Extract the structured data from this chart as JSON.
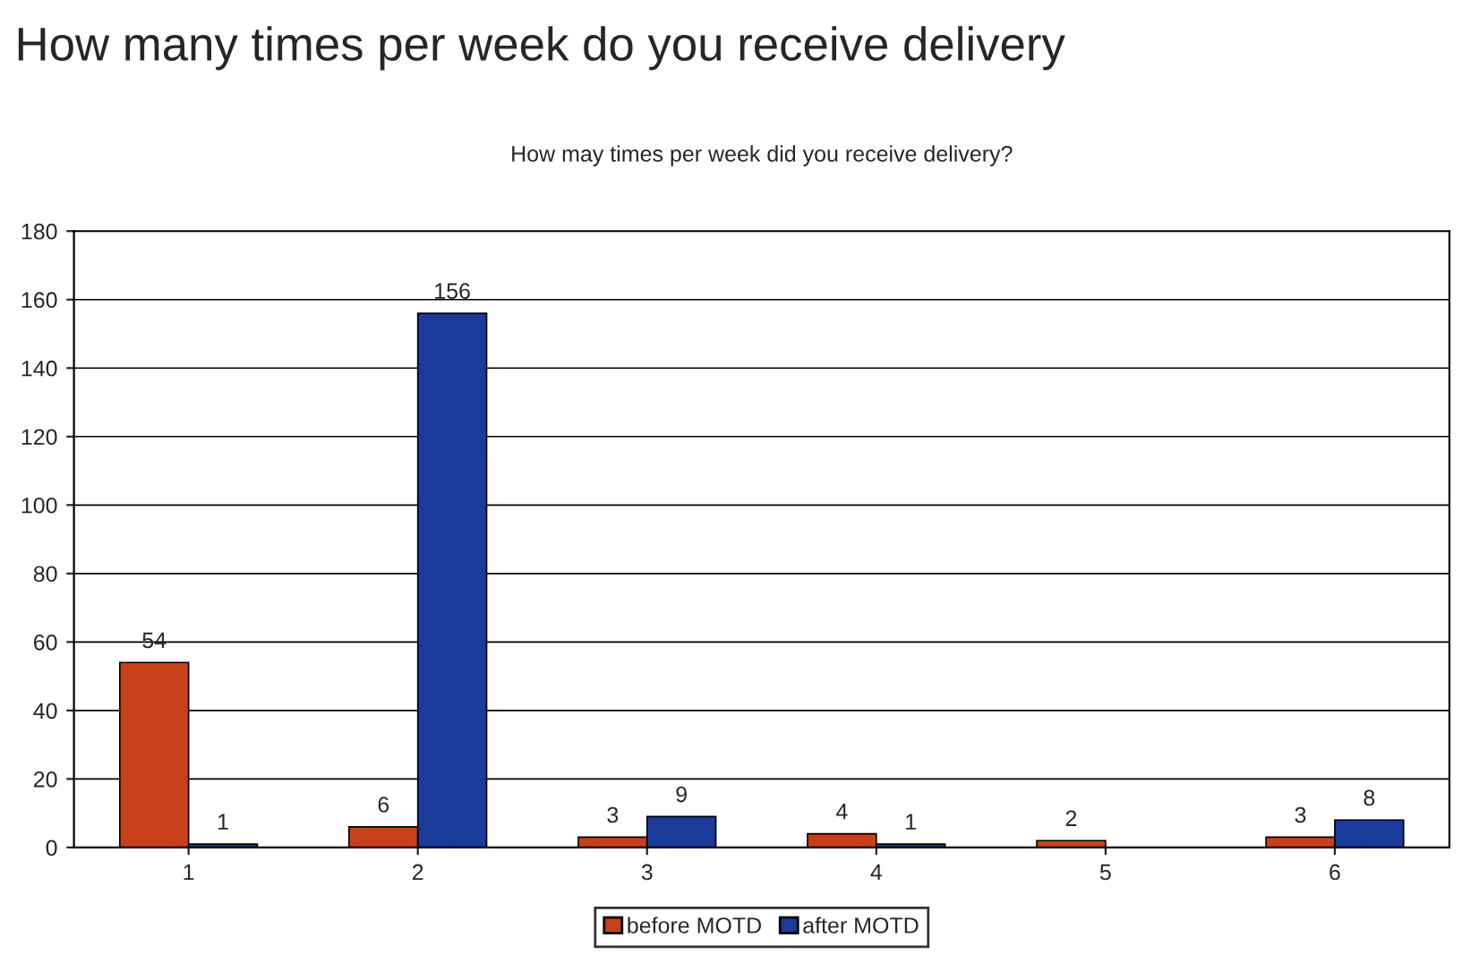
{
  "chart_data": {
    "type": "bar",
    "title": "How many times per week do you receive delivery",
    "subtitle": "How may times per week did you receive delivery?",
    "categories": [
      "1",
      "2",
      "3",
      "4",
      "5",
      "6"
    ],
    "series": [
      {
        "name": "before MOTD",
        "color": "#c8401a",
        "values": [
          54,
          6,
          3,
          4,
          2,
          3
        ]
      },
      {
        "name": "after MOTD",
        "color": "#1a3a9c",
        "values": [
          1,
          156,
          9,
          1,
          null,
          8
        ]
      }
    ],
    "ylim": [
      0,
      180
    ],
    "yticks": [
      0,
      20,
      40,
      60,
      80,
      100,
      120,
      140,
      160,
      180
    ],
    "grid": "y",
    "legend": "bottom",
    "data_labels": true
  }
}
